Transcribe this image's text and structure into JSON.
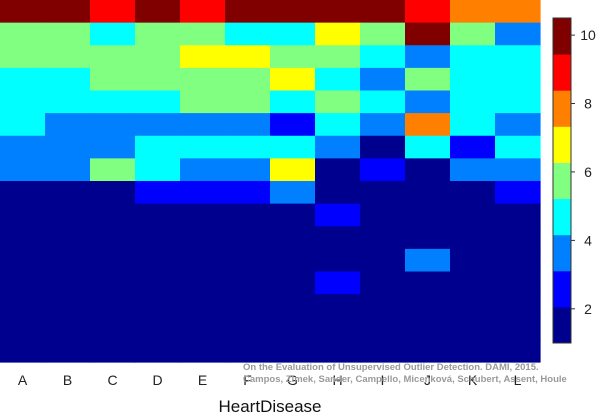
{
  "chart_data": {
    "type": "heatmap",
    "xlabel": "HeartDisease",
    "ylabel": "",
    "title": "",
    "categories": [
      "A",
      "B",
      "C",
      "D",
      "E",
      "F",
      "G",
      "H",
      "I",
      "J",
      "K",
      "L"
    ],
    "n_rows": 16,
    "colorbar": {
      "min": 1,
      "max": 10.5,
      "ticks": [
        2,
        4,
        6,
        8,
        10
      ]
    },
    "colors": [
      "#00008f",
      "#0000ff",
      "#0080ff",
      "#00ffff",
      "#80ff80",
      "#ffff00",
      "#ff8000",
      "#ff0000",
      "#800000"
    ],
    "values": [
      [
        10,
        10,
        9,
        10,
        9,
        10,
        10,
        10,
        10,
        9,
        8,
        8
      ],
      [
        6,
        6,
        5,
        6,
        6,
        5,
        5,
        7,
        6,
        10,
        6,
        4
      ],
      [
        6,
        6,
        6,
        6,
        7,
        7,
        6,
        6,
        5,
        4,
        5,
        5
      ],
      [
        5,
        5,
        6,
        6,
        6,
        6,
        7,
        5,
        4,
        6,
        5,
        5
      ],
      [
        5,
        5,
        5,
        5,
        6,
        6,
        5,
        6,
        5,
        4,
        5,
        5
      ],
      [
        5,
        4,
        4,
        4,
        4,
        4,
        3,
        5,
        4,
        8,
        5,
        4
      ],
      [
        4,
        4,
        4,
        5,
        5,
        5,
        5,
        4,
        2,
        5,
        3,
        5
      ],
      [
        4,
        4,
        6,
        5,
        4,
        4,
        7,
        2,
        3,
        2,
        4,
        4
      ],
      [
        2,
        2,
        2,
        3,
        3,
        3,
        4,
        2,
        1,
        2,
        1,
        3
      ],
      [
        2,
        2,
        2,
        2,
        2,
        2,
        2,
        3,
        2,
        1,
        2,
        2
      ],
      [
        2,
        2,
        2,
        2,
        2,
        2,
        1,
        1,
        1,
        2,
        2,
        2
      ],
      [
        1,
        1,
        1,
        2,
        2,
        2,
        1,
        2,
        2,
        4,
        1,
        2
      ],
      [
        1,
        1,
        1,
        1,
        1,
        1,
        2,
        3,
        2,
        1,
        2,
        1
      ],
      [
        1,
        1,
        1,
        1,
        1,
        1,
        2,
        2,
        2,
        1,
        1,
        1
      ],
      [
        1,
        1,
        1,
        1,
        1,
        1,
        1,
        1,
        1,
        1,
        1,
        1
      ],
      [
        1,
        1,
        1,
        1,
        1,
        1,
        1,
        1,
        1,
        1,
        1,
        1
      ]
    ]
  },
  "credit_line1": "On the Evaluation of Unsupervised Outlier Detection. DAMI, 2015.",
  "credit_line2": "Campos, Zimek, Sander, Campello, Micenková, Schubert, Assent, Houle"
}
